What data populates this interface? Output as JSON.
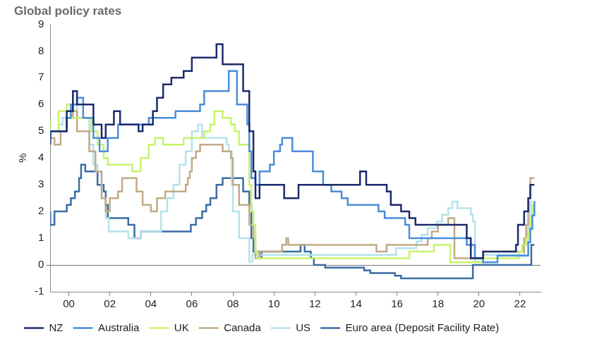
{
  "chart_data": {
    "type": "line",
    "title": "Global policy rates",
    "y_label": "%",
    "line_style": "stepped",
    "grid": false,
    "legend": "bottom",
    "xlim": [
      1999.1,
      2023
    ],
    "xticks": [
      {
        "value": 2000,
        "label": "00"
      },
      {
        "value": 2002,
        "label": "02"
      },
      {
        "value": 2004,
        "label": "04"
      },
      {
        "value": 2006,
        "label": "06"
      },
      {
        "value": 2008,
        "label": "08"
      },
      {
        "value": 2010,
        "label": "10"
      },
      {
        "value": 2012,
        "label": "12"
      },
      {
        "value": 2014,
        "label": "14"
      },
      {
        "value": 2016,
        "label": "16"
      },
      {
        "value": 2018,
        "label": "18"
      },
      {
        "value": 2020,
        "label": "20"
      },
      {
        "value": 2022,
        "label": "22"
      }
    ],
    "ylim": [
      -1,
      9
    ],
    "yticks": [
      -1,
      0,
      1,
      2,
      3,
      4,
      5,
      6,
      7,
      8,
      9
    ],
    "series": [
      {
        "name": "NZ",
        "color": "#1b2a6b",
        "x": [
          1999.1,
          1999.9,
          2000.2,
          2000.4,
          2001.2,
          2001.6,
          2001.8,
          2002.2,
          2002.5,
          2003.4,
          2003.6,
          2004.1,
          2004.3,
          2004.6,
          2005.0,
          2005.6,
          2006.0,
          2007.2,
          2007.5,
          2008.5,
          2008.8,
          2009.0,
          2009.1,
          2009.3,
          2010.5,
          2011.2,
          2014.2,
          2014.5,
          2015.5,
          2015.7,
          2016.2,
          2016.6,
          2016.9,
          2019.4,
          2019.6,
          2020.2,
          2021.8,
          2021.9,
          2022.2,
          2022.4,
          2022.5,
          2022.7
        ],
        "values": [
          4.5,
          5.0,
          5.75,
          6.5,
          6.0,
          5.25,
          4.75,
          5.25,
          5.75,
          5.25,
          5.0,
          5.25,
          5.75,
          6.25,
          6.75,
          7.0,
          7.25,
          7.75,
          8.25,
          7.5,
          6.5,
          5.0,
          3.5,
          2.5,
          3.0,
          2.5,
          3.0,
          3.5,
          3.0,
          2.75,
          2.25,
          2.0,
          1.75,
          1.5,
          1.0,
          0.25,
          0.5,
          0.75,
          1.5,
          2.0,
          2.5,
          3.0
        ]
      },
      {
        "name": "Australia",
        "color": "#4a8ddb",
        "x": [
          1999.1,
          1999.9,
          2000.1,
          2000.4,
          2000.7,
          2001.2,
          2001.5,
          2001.9,
          2002.4,
          2003.9,
          2005.2,
          2006.4,
          2006.6,
          2007.8,
          2008.2,
          2008.7,
          2008.8,
          2008.9,
          2009.1,
          2009.3,
          2009.8,
          2010.0,
          2010.3,
          2010.4,
          2010.9,
          2011.9,
          2012.4,
          2012.8,
          2013.3,
          2013.6,
          2015.1,
          2015.4,
          2016.4,
          2016.6,
          2019.4,
          2019.8,
          2020.2,
          2020.9,
          2022.4,
          2022.5,
          2022.6,
          2022.7,
          2022.75
        ],
        "values": [
          4.75,
          5.0,
          5.5,
          6.0,
          6.25,
          5.5,
          4.75,
          4.25,
          4.75,
          5.25,
          5.5,
          5.75,
          6.0,
          6.5,
          7.25,
          6.0,
          5.25,
          4.25,
          3.25,
          3.0,
          3.5,
          3.75,
          4.25,
          4.5,
          4.75,
          4.25,
          3.5,
          3.0,
          2.75,
          2.5,
          2.25,
          2.0,
          1.75,
          1.5,
          1.0,
          0.75,
          0.25,
          0.1,
          0.35,
          0.85,
          1.35,
          1.85,
          2.35
        ]
      },
      {
        "name": "UK",
        "color": "#c6f36c",
        "x": [
          1999.1,
          1999.5,
          1999.9,
          2000.1,
          2001.1,
          2001.4,
          2001.7,
          2001.9,
          2003.1,
          2003.5,
          2003.9,
          2004.2,
          2004.6,
          2005.6,
          2006.6,
          2006.9,
          2007.1,
          2007.5,
          2007.9,
          2008.1,
          2008.3,
          2008.8,
          2008.9,
          2009.0,
          2009.1,
          2009.2,
          2016.6,
          2017.8,
          2018.6,
          2020.2,
          2021.95,
          2022.1,
          2022.3,
          2022.4,
          2022.5,
          2022.6,
          2022.7
        ],
        "values": [
          5.5,
          5.0,
          5.75,
          6.0,
          5.5,
          5.0,
          4.5,
          4.0,
          3.75,
          3.5,
          4.0,
          4.5,
          4.75,
          4.5,
          4.75,
          5.0,
          5.25,
          5.75,
          5.5,
          5.25,
          5.0,
          4.5,
          3.0,
          2.0,
          1.5,
          0.5,
          0.25,
          0.5,
          0.75,
          0.1,
          0.25,
          0.5,
          0.75,
          1.0,
          1.25,
          1.75,
          2.25
        ]
      },
      {
        "name": "Canada",
        "color": "#c2aa88",
        "x": [
          1999.1,
          1999.3,
          1999.6,
          1999.9,
          2000.2,
          2000.4,
          2001.0,
          2001.3,
          2001.6,
          2001.8,
          2002.0,
          2002.4,
          2002.6,
          2003.3,
          2003.6,
          2004.0,
          2004.3,
          2004.7,
          2005.7,
          2005.8,
          2005.9,
          2006.0,
          2006.2,
          2006.4,
          2007.5,
          2007.9,
          2008.0,
          2008.3,
          2008.8,
          2009.0,
          2009.1,
          2009.3,
          2010.4,
          2010.6,
          2010.7,
          2015.0,
          2015.5,
          2017.5,
          2017.7,
          2018.0,
          2018.5,
          2018.8,
          2020.2,
          2022.2,
          2022.3,
          2022.4,
          2022.5,
          2022.7
        ],
        "values": [
          5.0,
          4.75,
          4.5,
          5.0,
          5.5,
          5.75,
          5.0,
          4.25,
          3.5,
          2.5,
          2.0,
          2.5,
          2.75,
          3.25,
          2.75,
          2.25,
          2.0,
          2.5,
          2.75,
          3.0,
          3.25,
          3.5,
          4.0,
          4.25,
          4.5,
          4.25,
          4.0,
          3.0,
          2.25,
          1.5,
          1.0,
          0.25,
          0.5,
          0.75,
          1.0,
          0.75,
          0.5,
          0.75,
          1.0,
          1.25,
          1.5,
          1.75,
          0.25,
          0.5,
          1.0,
          1.5,
          2.5,
          3.25
        ]
      },
      {
        "name": "US",
        "color": "#b5e2ea",
        "x": [
          1999.1,
          1999.5,
          1999.7,
          1999.9,
          2000.1,
          2000.2,
          2000.4,
          2001.0,
          2001.2,
          2001.4,
          2001.6,
          2001.8,
          2001.95,
          2002.9,
          2003.5,
          2004.5,
          2004.8,
          2005.1,
          2005.4,
          2005.7,
          2006.0,
          2006.3,
          2006.5,
          2007.7,
          2007.8,
          2007.95,
          2008.0,
          2008.3,
          2008.8,
          2008.95,
          2015.95,
          2016.95,
          2017.2,
          2017.5,
          2017.95,
          2018.2,
          2018.5,
          2018.7,
          2018.95,
          2019.6,
          2019.7,
          2019.8,
          2020.2,
          2022.2,
          2022.4,
          2022.5,
          2022.6
        ],
        "values": [
          4.75,
          5.0,
          5.25,
          5.5,
          5.75,
          6.0,
          6.5,
          5.5,
          4.5,
          3.75,
          3.5,
          2.5,
          1.75,
          1.25,
          1.0,
          1.25,
          2.0,
          2.5,
          3.0,
          3.75,
          4.25,
          5.0,
          5.25,
          4.75,
          4.5,
          4.25,
          3.0,
          2.0,
          1.0,
          0.125,
          0.375,
          0.625,
          0.875,
          1.125,
          1.375,
          1.625,
          1.875,
          2.125,
          2.375,
          2.125,
          1.875,
          1.625,
          0.125,
          0.375,
          0.875,
          1.625,
          2.375
        ]
      },
      {
        "name": "Euro area (Deposit Facility Rate)",
        "color": "#3a6ca3",
        "x": [
          1999.1,
          1999.3,
          1999.9,
          2000.1,
          2000.3,
          2000.5,
          2000.6,
          2000.8,
          2001.4,
          2001.7,
          2001.8,
          2001.9,
          2002.9,
          2003.2,
          2003.5,
          2005.95,
          2006.2,
          2006.5,
          2006.7,
          2006.9,
          2007.2,
          2007.5,
          2008.5,
          2008.8,
          2008.9,
          2009.0,
          2009.3,
          2009.4,
          2011.3,
          2011.5,
          2011.8,
          2011.95,
          2012.5,
          2014.4,
          2014.7,
          2015.9,
          2016.2,
          2019.7,
          2022.55,
          2022.7
        ],
        "values": [
          2.0,
          1.5,
          2.0,
          2.25,
          2.5,
          2.75,
          3.25,
          3.75,
          3.5,
          3.0,
          2.75,
          2.25,
          1.75,
          1.5,
          1.0,
          1.25,
          1.5,
          1.75,
          2.0,
          2.25,
          2.5,
          3.0,
          3.25,
          2.75,
          2.25,
          1.0,
          0.5,
          0.25,
          0.5,
          0.75,
          0.5,
          0.25,
          0.0,
          -0.1,
          -0.2,
          -0.3,
          -0.4,
          -0.5,
          0.0,
          0.75
        ]
      }
    ]
  }
}
